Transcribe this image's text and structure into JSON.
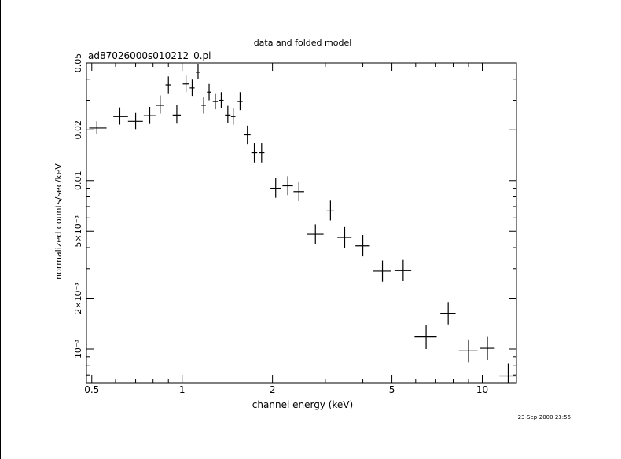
{
  "header": {
    "title": "data and folded model",
    "filename": "ad87026000s010212_0.pi",
    "timestamp": "23-Sep-2000 23:56"
  },
  "colors": {
    "ink": "#000000",
    "background": "#ffffff"
  },
  "chart_data": {
    "type": "scatter",
    "title": "data and folded model",
    "subtitle": "ad87026000s010212_0.pi",
    "xlabel": "channel energy (keV)",
    "ylabel": "normalized counts/sec/keV",
    "x_scale": "log",
    "y_scale": "log",
    "xlim": [
      0.48,
      13.0
    ],
    "ylim": [
      0.00063,
      0.05
    ],
    "grid": false,
    "legend": "none",
    "x_ticks": [
      {
        "value": 0.5,
        "label": "0.5"
      },
      {
        "value": 1,
        "label": "1"
      },
      {
        "value": 2,
        "label": "2"
      },
      {
        "value": 5,
        "label": "5"
      },
      {
        "value": 10,
        "label": "10"
      }
    ],
    "y_ticks": [
      {
        "value": 0.05,
        "label": "0.05"
      },
      {
        "value": 0.02,
        "label": "0.02"
      },
      {
        "value": 0.01,
        "label": "0.01"
      },
      {
        "value": 0.005,
        "label": "5×10⁻³"
      },
      {
        "value": 0.002,
        "label": "2×10⁻³"
      },
      {
        "value": 0.001,
        "label": "10⁻³"
      }
    ],
    "series": [
      {
        "points": [
          {
            "x": 0.52,
            "xlo": 0.49,
            "xhi": 0.56,
            "y": 0.0205,
            "ylo": 0.0188,
            "yhi": 0.0225
          },
          {
            "x": 0.62,
            "xlo": 0.59,
            "xhi": 0.66,
            "y": 0.024,
            "ylo": 0.0215,
            "yhi": 0.0272
          },
          {
            "x": 0.7,
            "xlo": 0.66,
            "xhi": 0.74,
            "y": 0.0225,
            "ylo": 0.0202,
            "yhi": 0.0252
          },
          {
            "x": 0.78,
            "xlo": 0.745,
            "xhi": 0.815,
            "y": 0.0243,
            "ylo": 0.0217,
            "yhi": 0.0274
          },
          {
            "x": 0.845,
            "xlo": 0.82,
            "xhi": 0.87,
            "y": 0.028,
            "ylo": 0.025,
            "yhi": 0.032
          },
          {
            "x": 0.9,
            "xlo": 0.88,
            "xhi": 0.92,
            "y": 0.037,
            "ylo": 0.033,
            "yhi": 0.0415
          },
          {
            "x": 0.96,
            "xlo": 0.93,
            "xhi": 0.99,
            "y": 0.0245,
            "ylo": 0.0218,
            "yhi": 0.028
          },
          {
            "x": 1.03,
            "xlo": 1.005,
            "xhi": 1.055,
            "y": 0.0375,
            "ylo": 0.0335,
            "yhi": 0.042
          },
          {
            "x": 1.08,
            "xlo": 1.06,
            "xhi": 1.1,
            "y": 0.0355,
            "ylo": 0.0318,
            "yhi": 0.0398
          },
          {
            "x": 1.13,
            "xlo": 1.11,
            "xhi": 1.15,
            "y": 0.044,
            "ylo": 0.04,
            "yhi": 0.049
          },
          {
            "x": 1.18,
            "xlo": 1.16,
            "xhi": 1.2,
            "y": 0.028,
            "ylo": 0.025,
            "yhi": 0.0315
          },
          {
            "x": 1.23,
            "xlo": 1.21,
            "xhi": 1.25,
            "y": 0.0335,
            "ylo": 0.03,
            "yhi": 0.0375
          },
          {
            "x": 1.29,
            "xlo": 1.265,
            "xhi": 1.315,
            "y": 0.0295,
            "ylo": 0.0265,
            "yhi": 0.033
          },
          {
            "x": 1.35,
            "xlo": 1.325,
            "xhi": 1.375,
            "y": 0.03,
            "ylo": 0.027,
            "yhi": 0.0335
          },
          {
            "x": 1.42,
            "xlo": 1.39,
            "xhi": 1.45,
            "y": 0.0245,
            "ylo": 0.022,
            "yhi": 0.0278
          },
          {
            "x": 1.48,
            "xlo": 1.455,
            "xhi": 1.505,
            "y": 0.024,
            "ylo": 0.0215,
            "yhi": 0.027
          },
          {
            "x": 1.56,
            "xlo": 1.53,
            "xhi": 1.59,
            "y": 0.0295,
            "ylo": 0.0262,
            "yhi": 0.0335
          },
          {
            "x": 1.65,
            "xlo": 1.61,
            "xhi": 1.69,
            "y": 0.0187,
            "ylo": 0.0165,
            "yhi": 0.0212
          },
          {
            "x": 1.74,
            "xlo": 1.7,
            "xhi": 1.78,
            "y": 0.0146,
            "ylo": 0.0128,
            "yhi": 0.0167
          },
          {
            "x": 1.84,
            "xlo": 1.8,
            "xhi": 1.88,
            "y": 0.0146,
            "ylo": 0.0128,
            "yhi": 0.0167
          },
          {
            "x": 2.05,
            "xlo": 1.97,
            "xhi": 2.13,
            "y": 0.009,
            "ylo": 0.0079,
            "yhi": 0.0103
          },
          {
            "x": 2.25,
            "xlo": 2.16,
            "xhi": 2.34,
            "y": 0.0093,
            "ylo": 0.0082,
            "yhi": 0.0106
          },
          {
            "x": 2.45,
            "xlo": 2.35,
            "xhi": 2.55,
            "y": 0.0086,
            "ylo": 0.00755,
            "yhi": 0.0098
          },
          {
            "x": 2.78,
            "xlo": 2.6,
            "xhi": 2.96,
            "y": 0.0048,
            "ylo": 0.0042,
            "yhi": 0.0055
          },
          {
            "x": 3.12,
            "xlo": 3.03,
            "xhi": 3.21,
            "y": 0.0066,
            "ylo": 0.0058,
            "yhi": 0.0076
          },
          {
            "x": 3.48,
            "xlo": 3.29,
            "xhi": 3.67,
            "y": 0.0046,
            "ylo": 0.004,
            "yhi": 0.0053
          },
          {
            "x": 4.0,
            "xlo": 3.78,
            "xhi": 4.22,
            "y": 0.0041,
            "ylo": 0.00355,
            "yhi": 0.00475
          },
          {
            "x": 4.65,
            "xlo": 4.32,
            "xhi": 4.98,
            "y": 0.0029,
            "ylo": 0.0025,
            "yhi": 0.00335
          },
          {
            "x": 5.45,
            "xlo": 5.1,
            "xhi": 5.8,
            "y": 0.00292,
            "ylo": 0.00252,
            "yhi": 0.00338
          },
          {
            "x": 6.5,
            "xlo": 5.95,
            "xhi": 7.05,
            "y": 0.00118,
            "ylo": 0.001,
            "yhi": 0.00138
          },
          {
            "x": 7.7,
            "xlo": 7.25,
            "xhi": 8.15,
            "y": 0.00163,
            "ylo": 0.0014,
            "yhi": 0.0019
          },
          {
            "x": 9.0,
            "xlo": 8.35,
            "xhi": 9.65,
            "y": 0.000975,
            "ylo": 0.00083,
            "yhi": 0.00114
          },
          {
            "x": 10.4,
            "xlo": 9.8,
            "xhi": 11.0,
            "y": 0.00101,
            "ylo": 0.00086,
            "yhi": 0.00118
          },
          {
            "x": 12.2,
            "xlo": 11.4,
            "xhi": 13.0,
            "y": 0.00069,
            "ylo": 0.00058,
            "yhi": 0.00082
          }
        ]
      }
    ]
  }
}
